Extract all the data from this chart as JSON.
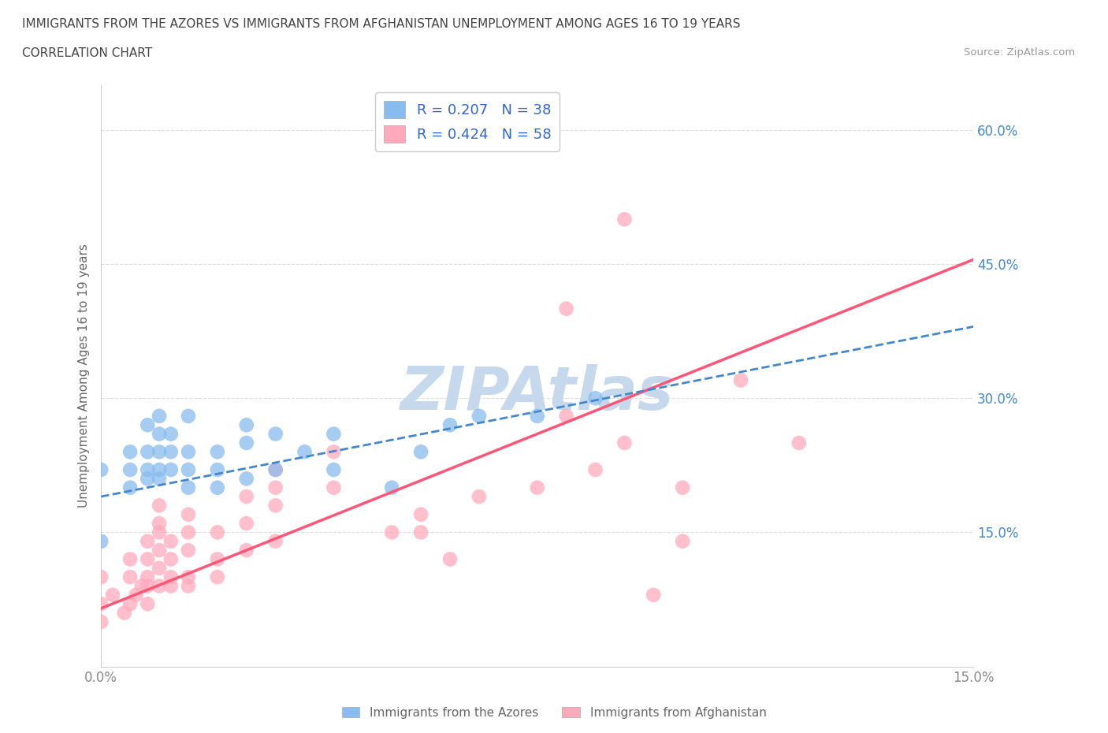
{
  "title_line1": "IMMIGRANTS FROM THE AZORES VS IMMIGRANTS FROM AFGHANISTAN UNEMPLOYMENT AMONG AGES 16 TO 19 YEARS",
  "title_line2": "CORRELATION CHART",
  "source_text": "Source: ZipAtlas.com",
  "ylabel": "Unemployment Among Ages 16 to 19 years",
  "xlim": [
    0.0,
    0.15
  ],
  "ylim": [
    0.0,
    0.65
  ],
  "ytick_values": [
    0.15,
    0.3,
    0.45,
    0.6
  ],
  "xtick_values": [
    0.0,
    0.15
  ],
  "legend_r1": "R = 0.207",
  "legend_n1": "N = 38",
  "legend_r2": "R = 0.424",
  "legend_n2": "N = 58",
  "color_azores": "#88BBEE",
  "color_afghanistan": "#FFAABC",
  "color_line_azores": "#4488CC",
  "color_line_afghanistan": "#FF5577",
  "watermark": "ZIPAtlas",
  "watermark_color": "#C5D8EC",
  "background_color": "#FFFFFF",
  "grid_color": "#DDDDDD",
  "azores_x": [
    0.0,
    0.0,
    0.005,
    0.005,
    0.005,
    0.008,
    0.008,
    0.008,
    0.008,
    0.01,
    0.01,
    0.01,
    0.01,
    0.01,
    0.012,
    0.012,
    0.012,
    0.015,
    0.015,
    0.015,
    0.015,
    0.02,
    0.02,
    0.02,
    0.025,
    0.025,
    0.025,
    0.03,
    0.03,
    0.035,
    0.04,
    0.04,
    0.05,
    0.055,
    0.06,
    0.065,
    0.075,
    0.085
  ],
  "azores_y": [
    0.14,
    0.22,
    0.2,
    0.22,
    0.24,
    0.21,
    0.22,
    0.24,
    0.27,
    0.21,
    0.22,
    0.24,
    0.26,
    0.28,
    0.22,
    0.24,
    0.26,
    0.2,
    0.22,
    0.24,
    0.28,
    0.2,
    0.22,
    0.24,
    0.21,
    0.25,
    0.27,
    0.22,
    0.26,
    0.24,
    0.22,
    0.26,
    0.2,
    0.24,
    0.27,
    0.28,
    0.28,
    0.3
  ],
  "afghanistan_x": [
    0.0,
    0.0,
    0.0,
    0.002,
    0.004,
    0.005,
    0.005,
    0.005,
    0.006,
    0.007,
    0.008,
    0.008,
    0.008,
    0.008,
    0.008,
    0.01,
    0.01,
    0.01,
    0.01,
    0.01,
    0.01,
    0.012,
    0.012,
    0.012,
    0.012,
    0.015,
    0.015,
    0.015,
    0.015,
    0.015,
    0.02,
    0.02,
    0.02,
    0.025,
    0.025,
    0.025,
    0.03,
    0.03,
    0.03,
    0.03,
    0.04,
    0.04,
    0.05,
    0.055,
    0.06,
    0.065,
    0.075,
    0.08,
    0.085,
    0.09,
    0.1,
    0.11,
    0.12,
    0.09,
    0.1,
    0.095,
    0.08,
    0.055
  ],
  "afghanistan_y": [
    0.05,
    0.07,
    0.1,
    0.08,
    0.06,
    0.07,
    0.1,
    0.12,
    0.08,
    0.09,
    0.07,
    0.09,
    0.1,
    0.12,
    0.14,
    0.09,
    0.11,
    0.13,
    0.15,
    0.16,
    0.18,
    0.09,
    0.1,
    0.12,
    0.14,
    0.09,
    0.1,
    0.13,
    0.15,
    0.17,
    0.1,
    0.12,
    0.15,
    0.13,
    0.16,
    0.19,
    0.14,
    0.18,
    0.2,
    0.22,
    0.2,
    0.24,
    0.15,
    0.17,
    0.12,
    0.19,
    0.2,
    0.28,
    0.22,
    0.25,
    0.2,
    0.32,
    0.25,
    0.5,
    0.14,
    0.08,
    0.4,
    0.15
  ],
  "azores_line_x0": 0.0,
  "azores_line_y0": 0.19,
  "azores_line_x1": 0.15,
  "azores_line_y1": 0.38,
  "afghanistan_line_x0": 0.0,
  "afghanistan_line_y0": 0.065,
  "afghanistan_line_x1": 0.15,
  "afghanistan_line_y1": 0.455
}
